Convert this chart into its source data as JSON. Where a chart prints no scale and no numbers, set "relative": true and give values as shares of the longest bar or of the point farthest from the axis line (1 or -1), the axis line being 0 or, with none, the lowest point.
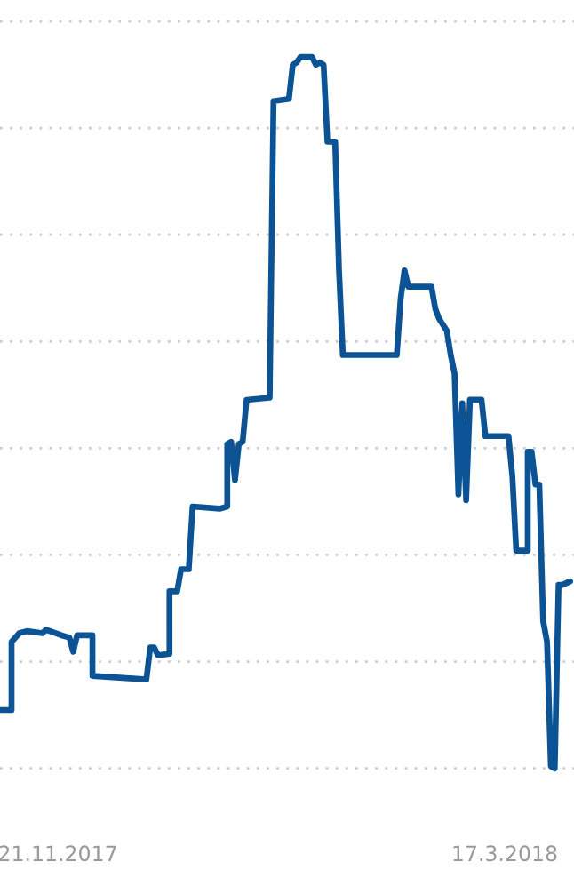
{
  "chart_data": {
    "type": "line",
    "relative": true,
    "grid": "y",
    "tick_labels": "x",
    "marker": "none",
    "line_style": "solid",
    "xlim": [
      "2017-11-06",
      "2018-04-04"
    ],
    "xticks": [
      {
        "value": "2017-11-21",
        "label": "21.11.2017"
      },
      {
        "value": "2018-03-17",
        "label": "17.3.2018"
      }
    ],
    "series": [
      {
        "color": "#0b5394",
        "x": [
          "2017-11-06",
          "2017-11-09",
          "2017-11-09",
          "2017-11-11",
          "2017-11-13",
          "2017-11-17",
          "2017-11-18",
          "2017-11-22",
          "2017-11-24",
          "2017-11-25",
          "2017-11-26",
          "2017-11-30",
          "2017-11-30",
          "2017-12-14",
          "2017-12-15",
          "2017-12-16",
          "2017-12-17",
          "2017-12-20",
          "2017-12-20",
          "2017-12-22",
          "2017-12-23",
          "2017-12-25",
          "2017-12-26",
          "2018-01-02",
          "2018-01-04",
          "2018-01-04",
          "2018-01-05",
          "2018-01-06",
          "2018-01-07",
          "2018-01-08",
          "2018-01-09",
          "2018-01-15",
          "2018-01-16",
          "2018-01-20",
          "2018-01-21",
          "2018-01-22",
          "2018-01-23",
          "2018-01-26",
          "2018-01-27",
          "2018-01-28",
          "2018-01-29",
          "2018-01-30",
          "2018-02-01",
          "2018-02-02",
          "2018-02-03",
          "2018-02-17",
          "2018-02-18",
          "2018-02-19",
          "2018-02-20",
          "2018-02-26",
          "2018-02-27",
          "2018-02-28",
          "2018-03-02",
          "2018-03-03",
          "2018-03-04",
          "2018-03-05",
          "2018-03-06",
          "2018-03-07",
          "2018-03-08",
          "2018-03-11",
          "2018-03-12",
          "2018-03-18",
          "2018-03-19",
          "2018-03-20",
          "2018-03-23",
          "2018-03-23",
          "2018-03-24",
          "2018-03-25",
          "2018-03-26",
          "2018-03-27",
          "2018-03-28",
          "2018-03-29",
          "2018-03-30",
          "2018-03-31",
          "2018-04-01",
          "2018-04-03"
        ],
        "values": [
          0.082,
          0.082,
          0.178,
          0.19,
          0.193,
          0.19,
          0.195,
          0.187,
          0.184,
          0.164,
          0.187,
          0.187,
          0.13,
          0.125,
          0.17,
          0.17,
          0.159,
          0.161,
          0.249,
          0.249,
          0.28,
          0.28,
          0.368,
          0.365,
          0.368,
          0.456,
          0.459,
          0.405,
          0.456,
          0.459,
          0.518,
          0.521,
          0.938,
          0.941,
          0.989,
          0.992,
          1,
          1,
          0.989,
          0.992,
          0.989,
          0.881,
          0.881,
          0.7,
          0.581,
          0.581,
          0.66,
          0.7,
          0.677,
          0.677,
          0.646,
          0.632,
          0.615,
          0.581,
          0.555,
          0.385,
          0.513,
          0.377,
          0.518,
          0.518,
          0.467,
          0.467,
          0.411,
          0.306,
          0.306,
          0.445,
          0.445,
          0.399,
          0.399,
          0.207,
          0.178,
          0.003,
          0,
          0.258,
          0.258,
          0.263
        ]
      }
    ]
  }
}
